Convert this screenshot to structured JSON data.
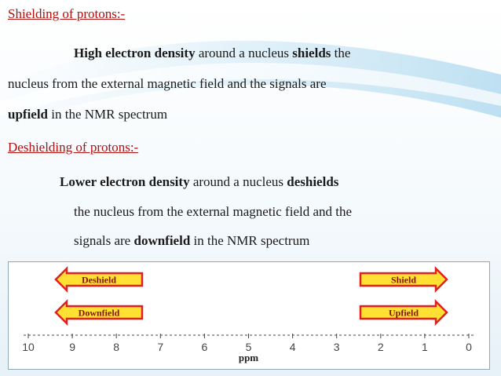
{
  "shielding": {
    "heading": "Shielding of protons:-",
    "line1": [
      {
        "text": "High electron density",
        "bold": true
      },
      {
        "text": " around a nucleus ",
        "bold": false
      },
      {
        "text": "shields",
        "bold": true
      },
      {
        "text": " the",
        "bold": false
      }
    ],
    "line2": "nucleus from the external magnetic field and the signals are",
    "line3": [
      {
        "text": "upfield",
        "bold": true
      },
      {
        "text": " in the NMR spectrum",
        "bold": false
      }
    ]
  },
  "deshielding": {
    "heading": "Deshielding of protons:-",
    "line1": [
      {
        "text": "Lower electron density",
        "bold": true
      },
      {
        "text": " around a nucleus ",
        "bold": false
      },
      {
        "text": "deshields",
        "bold": true
      }
    ],
    "line2": "the nucleus from the external magnetic field and the",
    "line3": [
      {
        "text": "signals are ",
        "bold": false
      },
      {
        "text": "downfield",
        "bold": true
      },
      {
        "text": " in the NMR spectrum",
        "bold": false
      }
    ]
  },
  "diagram": {
    "arrows": [
      {
        "label": "Deshield",
        "direction": "left"
      },
      {
        "label": "Downfield",
        "direction": "left"
      },
      {
        "label": "Shield",
        "direction": "right"
      },
      {
        "label": "Upfield",
        "direction": "right"
      }
    ],
    "arrow_fill": "#ffe033",
    "arrow_stroke": "#e02020",
    "arrow_text_color": "#8a1010",
    "axis_ticks": [
      "10",
      "9",
      "8",
      "7",
      "6",
      "5",
      "4",
      "3",
      "2",
      "1",
      "0"
    ],
    "axis_label": "ppm"
  }
}
